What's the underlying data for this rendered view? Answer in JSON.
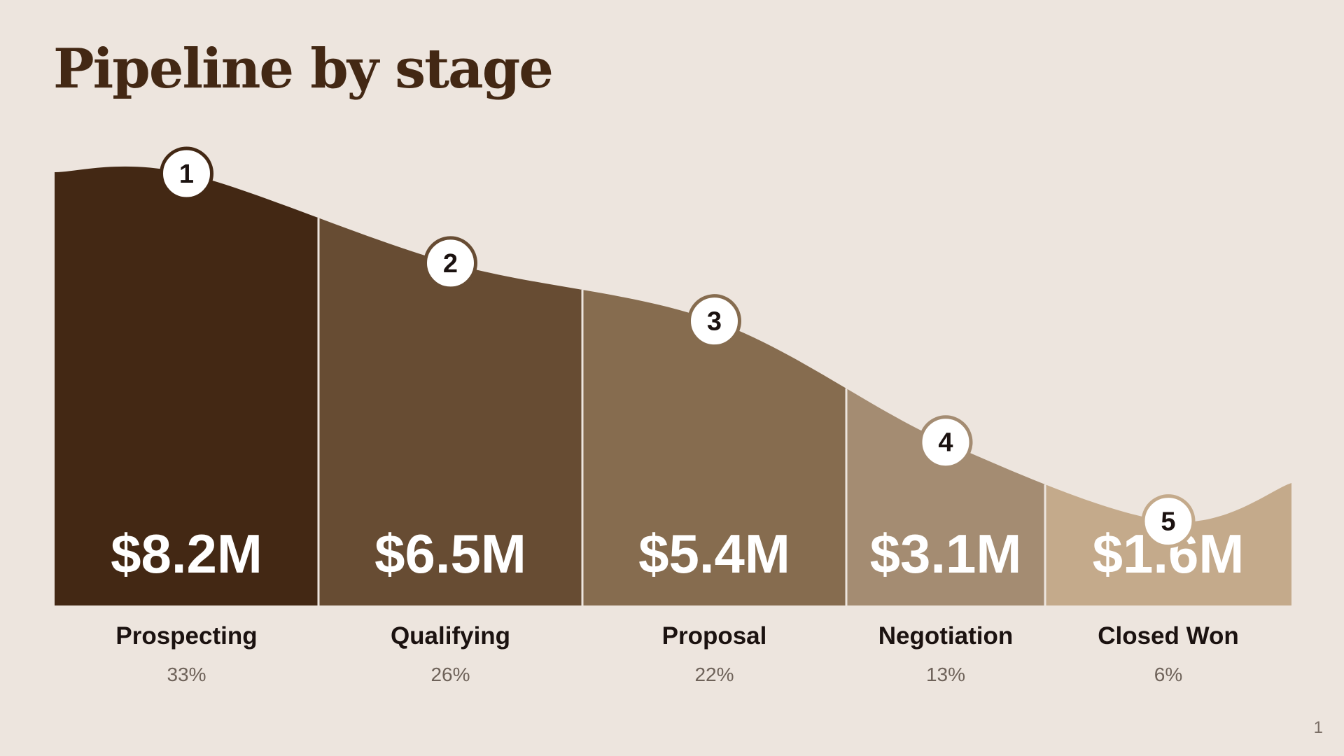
{
  "slide": {
    "title": "Pipeline by stage",
    "page_number": "1"
  },
  "chart_data": {
    "type": "area",
    "title": "Pipeline by stage",
    "categories": [
      "Prospecting",
      "Qualifying",
      "Proposal",
      "Negotiation",
      "Closed Won"
    ],
    "values": [
      8.2,
      6.5,
      5.4,
      3.1,
      1.6
    ],
    "value_labels": [
      "$8.2M",
      "$6.5M",
      "$5.4M",
      "$3.1M",
      "$1.6M"
    ],
    "percent_labels": [
      "33%",
      "26%",
      "22%",
      "13%",
      "6%"
    ],
    "marker_labels": [
      "1",
      "2",
      "3",
      "4",
      "5"
    ],
    "unit": "$M",
    "colors": [
      "#432814",
      "#674C33",
      "#866C4F",
      "#A48C72",
      "#C4AA8B"
    ],
    "marker_border_colors": [
      "#432814",
      "#674C33",
      "#866C4F",
      "#A48C72",
      "#C4AA8B"
    ],
    "background": "#EDE5DE",
    "grid": false,
    "legend": "none"
  }
}
